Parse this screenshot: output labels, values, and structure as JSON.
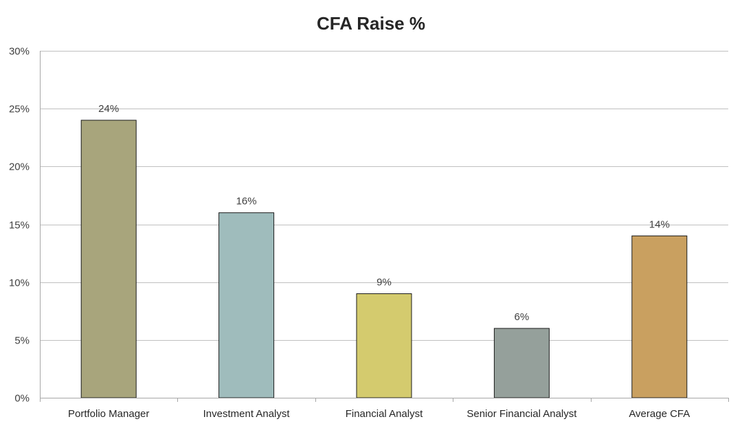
{
  "chart_data": {
    "type": "bar",
    "title": "CFA Raise %",
    "xlabel": "",
    "ylabel": "",
    "categories": [
      "Portfolio Manager",
      "Investment Analyst",
      "Financial Analyst",
      "Senior Financial Analyst",
      "Average CFA"
    ],
    "values": [
      24,
      16,
      9,
      6,
      14
    ],
    "data_labels": [
      "24%",
      "16%",
      "9%",
      "6%",
      "14%"
    ],
    "bar_colors": [
      "#a8a57c",
      "#9fbcbc",
      "#d4cb6e",
      "#95a09b",
      "#c9a060"
    ],
    "ylim": [
      0,
      30
    ],
    "y_ticks": [
      0,
      5,
      10,
      15,
      20,
      25,
      30
    ],
    "y_tick_labels": [
      "0%",
      "5%",
      "10%",
      "15%",
      "20%",
      "25%",
      "30%"
    ],
    "grid": true,
    "legend": "none"
  }
}
